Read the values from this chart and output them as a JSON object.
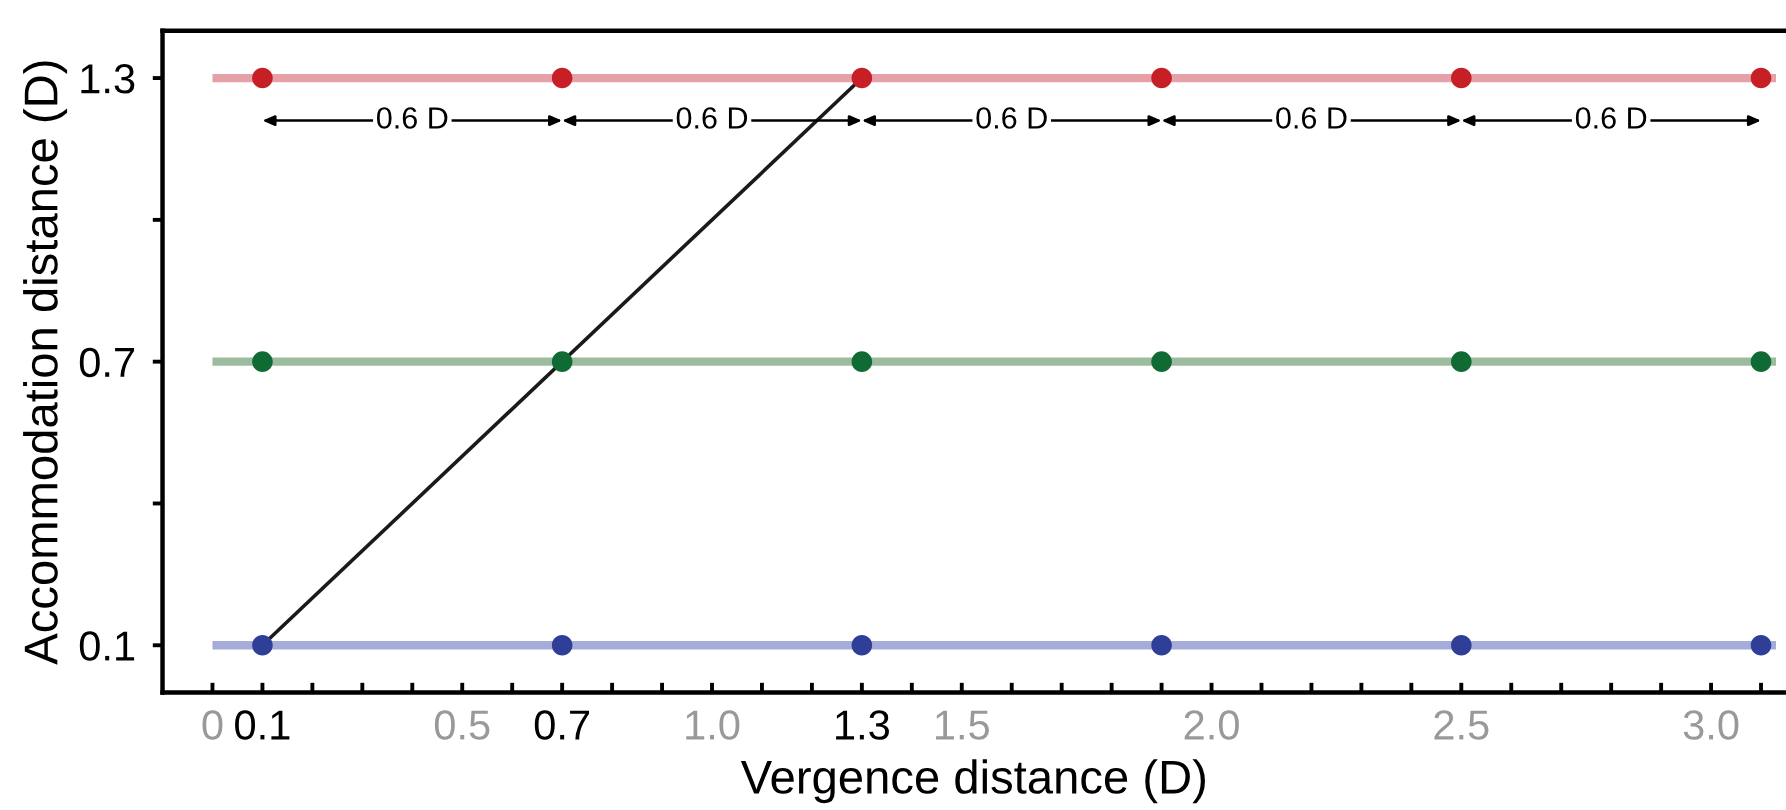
{
  "chart_data": {
    "type": "line",
    "xlabel": "Vergence distance (D)",
    "ylabel": "Accommodation distance (D)",
    "xlim": [
      -0.1,
      3.15
    ],
    "ylim": [
      0,
      1.4
    ],
    "xticks": [
      0,
      0.1,
      {
        "value": 0.2,
        "label": null
      },
      {
        "value": 0.3,
        "label": null
      },
      {
        "value": 0.4,
        "label": null
      },
      0.5,
      {
        "value": 0.6,
        "label": null
      },
      0.7,
      {
        "value": 0.8,
        "label": null
      },
      {
        "value": 0.9,
        "label": null
      },
      {
        "value": 1.0,
        "label": "1.0"
      },
      {
        "value": 1.1,
        "label": null
      },
      {
        "value": 1.2,
        "label": null
      },
      1.3,
      {
        "value": 1.4,
        "label": null
      },
      1.5,
      {
        "value": 1.6,
        "label": null
      },
      {
        "value": 1.7,
        "label": null
      },
      {
        "value": 1.8,
        "label": null
      },
      {
        "value": 1.9,
        "label": null
      },
      {
        "value": 2.0,
        "label": "2.0"
      },
      {
        "value": 2.1,
        "label": null
      },
      {
        "value": 2.2,
        "label": null
      },
      {
        "value": 2.3,
        "label": null
      },
      {
        "value": 2.4,
        "label": null
      },
      2.5,
      {
        "value": 2.6,
        "label": null
      },
      {
        "value": 2.7,
        "label": null
      },
      {
        "value": 2.8,
        "label": null
      },
      {
        "value": 2.9,
        "label": null
      },
      {
        "value": 3.0,
        "label": "3.0"
      },
      {
        "value": 3.1,
        "label": null
      }
    ],
    "yticks": [
      0.1,
      {
        "value": 0.4,
        "label": null
      },
      0.7,
      {
        "value": 1.0,
        "label": null
      },
      1.3
    ],
    "grid": false,
    "legend": false,
    "series": [
      {
        "color": "#e6a0a8",
        "x": [
          0,
          3.13
        ],
        "values": [
          1.3,
          1.3
        ]
      },
      {
        "color": "#9dbb9f",
        "x": [
          0,
          3.13
        ],
        "values": [
          0.7,
          0.7
        ]
      },
      {
        "color": "#a6acd8",
        "x": [
          0,
          3.13
        ],
        "values": [
          0.1,
          0.1
        ]
      },
      {
        "color": "#1a1a1a",
        "x": [
          0.1,
          1.3
        ],
        "values": [
          0.1,
          1.3
        ]
      },
      {
        "type": "scatter",
        "color": "#c62026",
        "marker": "circle",
        "x": [
          0.1,
          0.7,
          1.3,
          1.9,
          2.5,
          3.1
        ],
        "values": [
          1.3,
          1.3,
          1.3,
          1.3,
          1.3,
          1.3
        ]
      },
      {
        "type": "scatter",
        "color": "#0f6a34",
        "marker": "circle",
        "x": [
          0.1,
          0.7,
          1.3,
          1.9,
          2.5,
          3.1
        ],
        "values": [
          0.7,
          0.7,
          0.7,
          0.7,
          0.7,
          0.7
        ]
      },
      {
        "type": "scatter",
        "color": "#2f3f98",
        "marker": "circle",
        "x": [
          0.1,
          0.7,
          1.3,
          1.9,
          2.5,
          3.1
        ],
        "values": [
          0.1,
          0.1,
          0.1,
          0.1,
          0.1,
          0.1
        ]
      }
    ],
    "annotations": [
      {
        "text": "0.6 D",
        "x": 0.4,
        "y": 1.21
      },
      {
        "text": "0.6 D",
        "x": 1.0,
        "y": 1.21
      },
      {
        "text": "0.6 D",
        "x": 1.6,
        "y": 1.21
      },
      {
        "text": "0.6 D",
        "x": 2.2,
        "y": 1.21
      },
      {
        "text": "0.6 D",
        "x": 2.8,
        "y": 1.21
      }
    ]
  }
}
